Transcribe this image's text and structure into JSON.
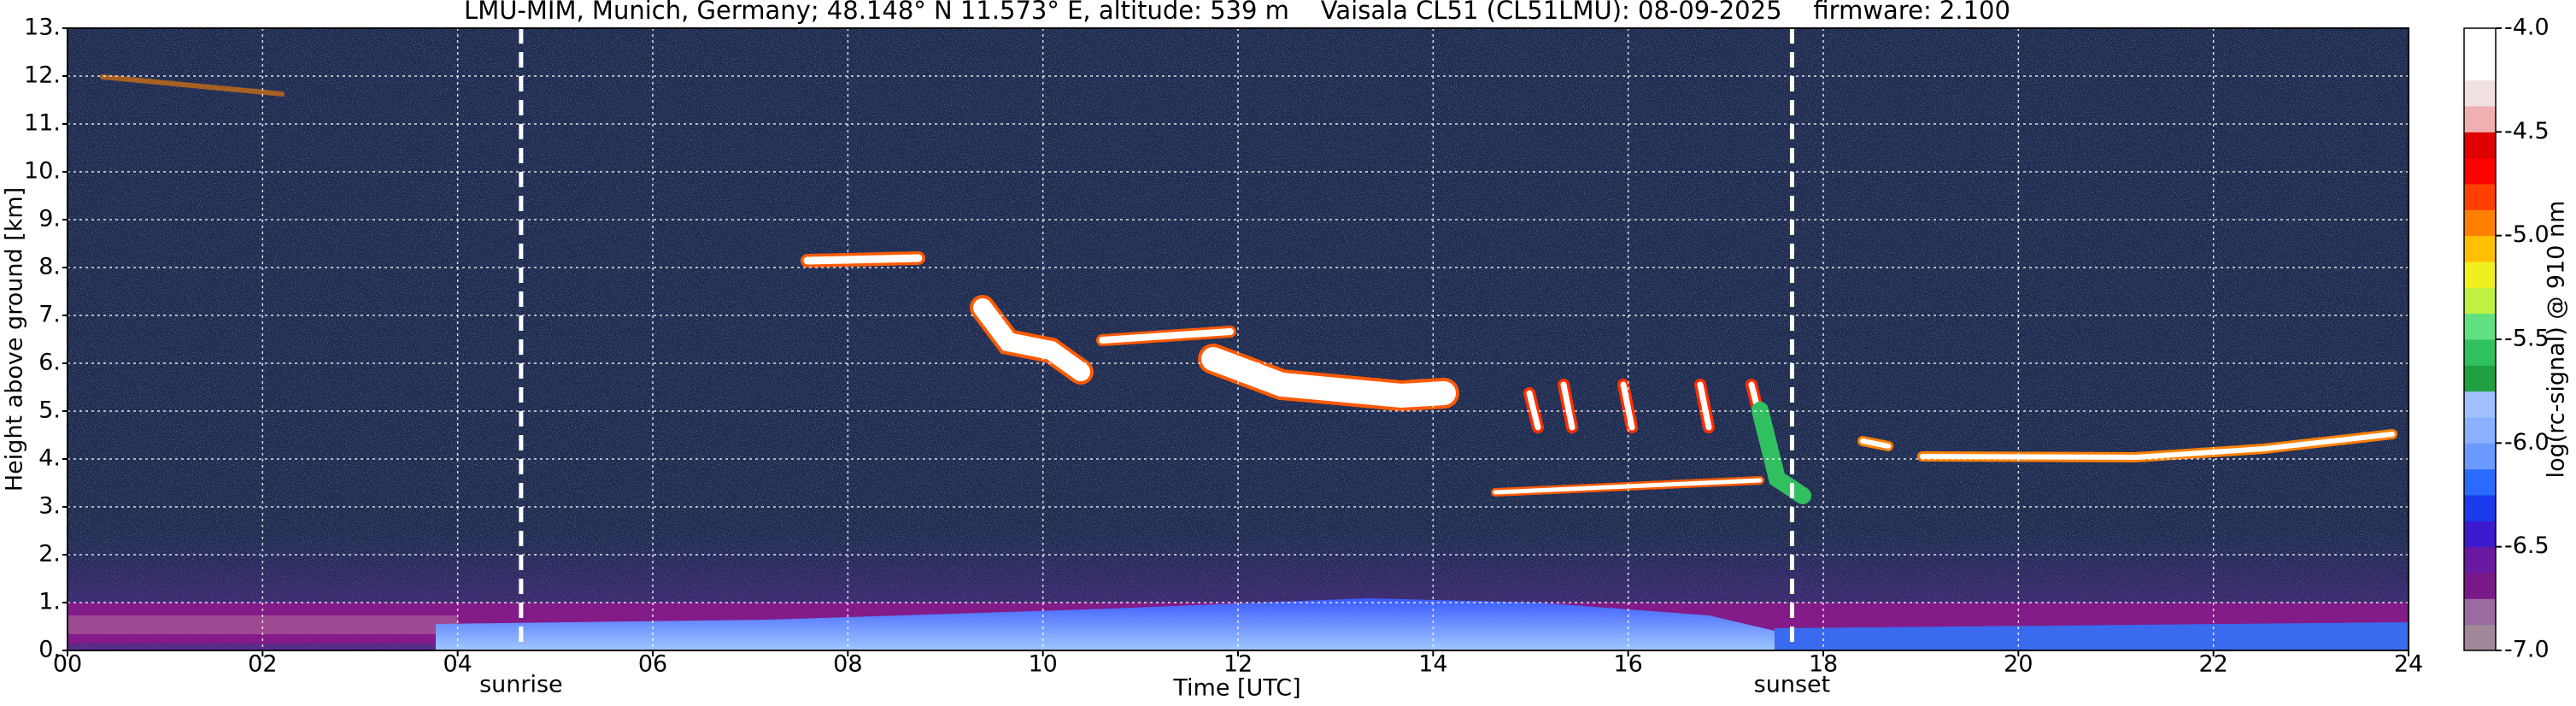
{
  "chart_data": {
    "type": "heatmap",
    "title": "LMU-MIM, Munich, Germany; 48.148° N 11.573° E, altitude: 539 m    Vaisala CL51 (CL51LMU): 08-09-2025    firmware: 2.100",
    "x_label": "Time [UTC]",
    "y_label": "Height above ground [km]",
    "xlim": [
      0,
      24
    ],
    "xticks": [
      {
        "value": 0,
        "label": "00"
      },
      {
        "value": 2,
        "label": "02"
      },
      {
        "value": 4,
        "label": "04"
      },
      {
        "value": 6,
        "label": "06"
      },
      {
        "value": 8,
        "label": "08"
      },
      {
        "value": 10,
        "label": "10"
      },
      {
        "value": 12,
        "label": "12"
      },
      {
        "value": 14,
        "label": "14"
      },
      {
        "value": 16,
        "label": "16"
      },
      {
        "value": 18,
        "label": "18"
      },
      {
        "value": 20,
        "label": "20"
      },
      {
        "value": 22,
        "label": "22"
      },
      24
    ],
    "ylim": [
      0,
      13
    ],
    "yticks": [
      {
        "value": 0,
        "label": "0."
      },
      {
        "value": 1,
        "label": "1."
      },
      {
        "value": 2,
        "label": "2."
      },
      {
        "value": 3,
        "label": "3."
      },
      {
        "value": 4,
        "label": "4."
      },
      {
        "value": 5,
        "label": "5."
      },
      {
        "value": 6,
        "label": "6."
      },
      {
        "value": 7,
        "label": "7."
      },
      {
        "value": 8,
        "label": "8."
      },
      {
        "value": 9,
        "label": "9."
      },
      {
        "value": 10,
        "label": "10."
      },
      {
        "value": 11,
        "label": "11."
      },
      {
        "value": 12,
        "label": "12."
      },
      {
        "value": 13,
        "label": "13."
      }
    ],
    "grid": true,
    "annotations": [
      {
        "text": "sunrise",
        "x": 4.65
      },
      {
        "text": "sunset",
        "x": 17.68
      }
    ],
    "colorbar": {
      "label": "log(rc-signal) @ 910 nm",
      "lim": [
        -7,
        -4
      ],
      "ticks": [
        {
          "value": -7,
          "label": "-7.0"
        },
        {
          "value": -6.5,
          "label": "-6.5"
        },
        {
          "value": -6,
          "label": "-6.0"
        },
        {
          "value": -5.5,
          "label": "-5.5"
        },
        {
          "value": -5,
          "label": "-5.0"
        },
        {
          "value": -4.5,
          "label": "-4.5"
        },
        {
          "value": -4,
          "label": "-4.0"
        }
      ],
      "colors": [
        "#a08898",
        "#9a6aa0",
        "#7a1a8a",
        "#6a1aa0",
        "#3a1acc",
        "#1a3aee",
        "#2a6aff",
        "#6a9aff",
        "#8ab0ff",
        "#a0c0ff",
        "#20a040",
        "#30c060",
        "#60e080",
        "#c0f040",
        "#f0f020",
        "#ffc000",
        "#ff8000",
        "#ff4000",
        "#ff0000",
        "#e00000",
        "#f0b0b0",
        "#f0e0e0",
        "#ffffff",
        "#ffffff"
      ]
    }
  }
}
